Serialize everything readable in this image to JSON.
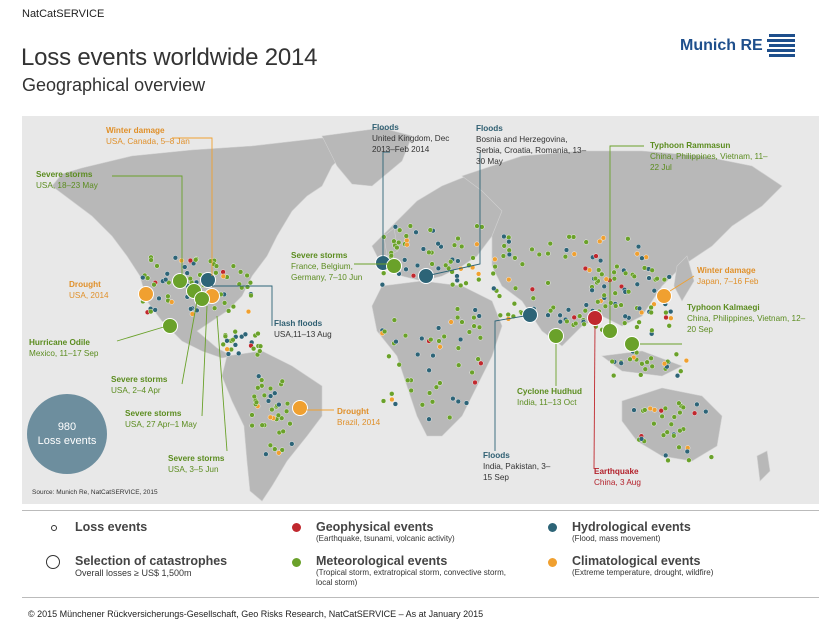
{
  "header": {
    "brand": "NatCatSERVICE",
    "title": "Loss events worldwide 2014",
    "subtitle": "Geographical overview",
    "logo_text": "Munich RE"
  },
  "colors": {
    "geophysical": "#c0282e",
    "meteorological": "#6aa12a",
    "hydrological": "#2d6477",
    "climatological": "#f0a030",
    "land": "#b8b8b8",
    "ocean": "#e8e8e8",
    "total_circle": "#6d8e9e"
  },
  "callouts": [
    {
      "id": "winter-damage-usa",
      "title": "Winter damage",
      "detail": "USA, Canada, 5–8 Jan",
      "type": "climatological"
    },
    {
      "id": "severe-storms-usa-may",
      "title": "Severe storms",
      "detail": "USA, 18–23 May",
      "type": "meteorological"
    },
    {
      "id": "drought-usa",
      "title": "Drought",
      "detail": "USA, 2014",
      "type": "climatological"
    },
    {
      "id": "hurricane-odile",
      "title": "Hurricane Odile",
      "detail": "Mexico, 11–17 Sep",
      "type": "meteorological"
    },
    {
      "id": "severe-storms-usa-apr",
      "title": "Severe storms",
      "detail": "USA, 2–4 Apr",
      "type": "meteorological"
    },
    {
      "id": "severe-storms-usa-aprmay",
      "title": "Severe storms",
      "detail": "USA, 27 Apr–1 May",
      "type": "meteorological"
    },
    {
      "id": "severe-storms-usa-jun",
      "title": "Severe storms",
      "detail": "USA, 3–5 Jun",
      "type": "meteorological"
    },
    {
      "id": "floods-uk",
      "title": "Floods",
      "detail": "United Kingdom, Dec 2013–Feb 2014",
      "type": "hydrological"
    },
    {
      "id": "floods-balkans",
      "title": "Floods",
      "detail": "Bosnia and Herzegovina, Serbia, Croatia, Romania, 13–30 May",
      "type": "hydrological"
    },
    {
      "id": "severe-storms-europe",
      "title": "Severe storms",
      "detail": "France, Belgium, Germany, 7–10 Jun",
      "type": "meteorological"
    },
    {
      "id": "flash-floods-usa",
      "title": "Flash floods",
      "detail": "USA,11–13 Aug",
      "type": "hydrological"
    },
    {
      "id": "drought-brazil",
      "title": "Drought",
      "detail": "Brazil, 2014",
      "type": "climatological"
    },
    {
      "id": "typhoon-rammasun",
      "title": "Typhoon Rammasun",
      "detail": "China, Philippines, Vietnam, 11–22 Jul",
      "type": "meteorological"
    },
    {
      "id": "winter-damage-japan",
      "title": "Winter damage",
      "detail": "Japan, 7–16 Feb",
      "type": "climatological"
    },
    {
      "id": "typhoon-kalmaegi",
      "title": "Typhoon Kalmaegi",
      "detail": "China, Philippines, Vietnam, 12–20 Sep",
      "type": "meteorological"
    },
    {
      "id": "cyclone-hudhud",
      "title": "Cyclone Hudhud",
      "detail": "India, 11–13 Oct",
      "type": "meteorological"
    },
    {
      "id": "floods-india",
      "title": "Floods",
      "detail": "India, Pakistan, 3–15 Sep",
      "type": "hydrological"
    },
    {
      "id": "earthquake-china",
      "title": "Earthquake",
      "detail": "China, 3 Aug",
      "type": "geophysical"
    }
  ],
  "total": {
    "count": "980",
    "label": "Loss events"
  },
  "source": "Source: Munich Re, NatCatSERVICE, 2015",
  "legend": {
    "loss_events": "Loss events",
    "selection": "Selection of catastrophes",
    "selection_detail": "Overall losses ≥ US$ 1,500m",
    "geophysical": "Geophysical events",
    "geophysical_detail": "(Earthquake, tsunami, volcanic activity)",
    "meteorological": "Meteorological events",
    "meteorological_detail": "(Tropical storm, extratropical storm, convective storm, local storm)",
    "hydrological": "Hydrological events",
    "hydrological_detail": "(Flood, mass movement)",
    "climatological": "Climatological events",
    "climatological_detail": "(Extreme temperature, drought, wildfire)"
  },
  "footer": "© 2015 Münchener Rückversicherungs-Gesellschaft, Geo Risks Research, NatCatSERVICE – As at January 2015"
}
